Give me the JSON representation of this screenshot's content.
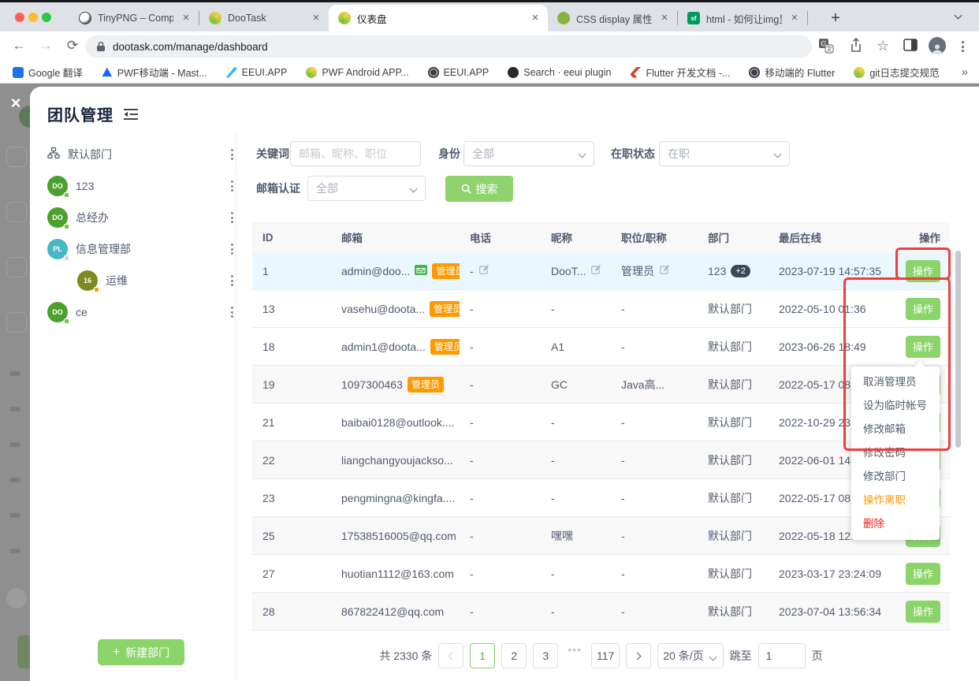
{
  "browser": {
    "tabs": [
      {
        "title": "TinyPNG – Compress We",
        "icon": "panda",
        "active": false
      },
      {
        "title": "DooTask",
        "icon": "dootask",
        "active": false
      },
      {
        "title": "仪表盘",
        "icon": "dootask",
        "active": true
      },
      {
        "title": "CSS display 属性 | 菜鸟教",
        "icon": "runoob",
        "active": false
      },
      {
        "title": "html - 如何让img里的图片",
        "icon": "segmentfault",
        "active": false
      }
    ],
    "new_tab_label": "+",
    "url": "dootask.com/manage/dashboard",
    "bookmarks": [
      {
        "label": "Google 翻译",
        "icon": "google-translate"
      },
      {
        "label": "PWF移动端 - Mast...",
        "icon": "triangle-blue"
      },
      {
        "label": "EEUI.APP",
        "icon": "feather-blue"
      },
      {
        "label": "PWF Android APP...",
        "icon": "dootask"
      },
      {
        "label": "EEUI.APP",
        "icon": "globe-dark"
      },
      {
        "label": "Search · eeui plugin",
        "icon": "github"
      },
      {
        "label": "Flutter 开发文档 -...",
        "icon": "flutter"
      },
      {
        "label": "移动端的 Flutter",
        "icon": "globe-dark"
      },
      {
        "label": "git日志提交规范",
        "icon": "dootask"
      }
    ],
    "bookmarks_overflow": "»"
  },
  "modal": {
    "title": "团队管理",
    "sidebar": {
      "items": [
        {
          "label": "默认部门",
          "type": "root"
        },
        {
          "label": "123",
          "avatar": "DO",
          "avatar_color": "#4ca12e",
          "badge_color": "#7ebc4f",
          "indent": 0
        },
        {
          "label": "总经办",
          "avatar": "DO",
          "avatar_color": "#4ca12e",
          "badge_color": "#7ebc4f",
          "indent": 0
        },
        {
          "label": "信息管理部",
          "avatar": "PL",
          "avatar_color": "#45b8c2",
          "badge_color": "#d8d8d8",
          "indent": 0
        },
        {
          "label": "运维",
          "avatar": "16",
          "avatar_color": "#7c8a1f",
          "badge_color": "#f0a020",
          "indent": 1
        },
        {
          "label": "ce",
          "avatar": "DO",
          "avatar_color": "#4ca12e",
          "badge_color": "#7ebc4f",
          "indent": 0
        }
      ],
      "new_department_label": "新建部门"
    },
    "filters": {
      "keyword_label": "关键词",
      "keyword_placeholder": "邮箱、昵称、职位",
      "identity_label": "身份",
      "identity_value": "全部",
      "status_label": "在职状态",
      "status_value": "在职",
      "email_verify_label": "邮箱认证",
      "email_verify_value": "全部",
      "search_label": "搜索"
    },
    "table": {
      "columns": [
        "ID",
        "邮箱",
        "电话",
        "昵称",
        "职位/职称",
        "部门",
        "最后在线",
        "操作"
      ],
      "admin_badge_label": "管理员",
      "action_label": "操作",
      "rows": [
        {
          "id": "1",
          "email": "admin@doo...",
          "verified": true,
          "admin": true,
          "phone": "-",
          "nickname": "DooT...",
          "job": "管理员",
          "dept": "123",
          "dept_badge": "+2",
          "last_online": "2023-07-19 14:57:35",
          "selected": true,
          "striped": false,
          "editable": true
        },
        {
          "id": "13",
          "email": "vasehu@doota...",
          "verified": false,
          "admin": true,
          "phone": "-",
          "nickname": "-",
          "job": "-",
          "dept": "默认部门",
          "dept_badge": "",
          "last_online": "2022-05-10 01:36",
          "selected": false,
          "striped": false,
          "editable": false
        },
        {
          "id": "18",
          "email": "admin1@doota...",
          "verified": false,
          "admin": true,
          "phone": "-",
          "nickname": "A1",
          "job": "-",
          "dept": "默认部门",
          "dept_badge": "",
          "last_online": "2023-06-26 18:49",
          "selected": false,
          "striped": false,
          "editable": false
        },
        {
          "id": "19",
          "email": "1097300463",
          "verified": false,
          "admin": true,
          "phone": "-",
          "nickname": "GC",
          "job": "Java高...",
          "dept": "默认部门",
          "dept_badge": "",
          "last_online": "2022-05-17 08:34",
          "selected": false,
          "striped": true,
          "editable": false
        },
        {
          "id": "21",
          "email": "baibai0128@outlook....",
          "verified": false,
          "admin": false,
          "phone": "-",
          "nickname": "-",
          "job": "-",
          "dept": "默认部门",
          "dept_badge": "",
          "last_online": "2022-10-29 23:45",
          "selected": false,
          "striped": false,
          "editable": false
        },
        {
          "id": "22",
          "email": "liangchangyoujackso...",
          "verified": false,
          "admin": false,
          "phone": "-",
          "nickname": "-",
          "job": "-",
          "dept": "默认部门",
          "dept_badge": "",
          "last_online": "2022-06-01 14:54:59",
          "selected": false,
          "striped": true,
          "editable": false
        },
        {
          "id": "23",
          "email": "pengmingna@kingfa....",
          "verified": false,
          "admin": false,
          "phone": "-",
          "nickname": "-",
          "job": "-",
          "dept": "默认部门",
          "dept_badge": "",
          "last_online": "2022-05-17 08:46:52",
          "selected": false,
          "striped": false,
          "editable": false
        },
        {
          "id": "25",
          "email": "17538516005@qq.com",
          "verified": false,
          "admin": false,
          "phone": "-",
          "nickname": "嘿嘿",
          "job": "-",
          "dept": "默认部门",
          "dept_badge": "",
          "last_online": "2022-05-18 12:40:52",
          "selected": false,
          "striped": true,
          "editable": false
        },
        {
          "id": "27",
          "email": "huotian1112@163.com",
          "verified": false,
          "admin": false,
          "phone": "-",
          "nickname": "-",
          "job": "-",
          "dept": "默认部门",
          "dept_badge": "",
          "last_online": "2023-03-17 23:24:09",
          "selected": false,
          "striped": false,
          "editable": false
        },
        {
          "id": "28",
          "email": "867822412@qq.com",
          "verified": false,
          "admin": false,
          "phone": "-",
          "nickname": "-",
          "job": "-",
          "dept": "默认部门",
          "dept_badge": "",
          "last_online": "2023-07-04 13:56:34",
          "selected": false,
          "striped": true,
          "editable": false
        }
      ]
    },
    "context_menu": {
      "items": [
        {
          "label": "取消管理员",
          "tone": "default"
        },
        {
          "label": "设为临时帐号",
          "tone": "default"
        },
        {
          "label": "修改邮箱",
          "tone": "default"
        },
        {
          "label": "修改密码",
          "tone": "default"
        },
        {
          "label": "修改部门",
          "tone": "default"
        },
        {
          "label": "操作离职",
          "tone": "warning"
        },
        {
          "label": "删除",
          "tone": "danger"
        }
      ]
    },
    "pagination": {
      "total": "共 2330 条",
      "pages": [
        "1",
        "2",
        "3",
        "...",
        "117"
      ],
      "active_page": "1",
      "per_page": "20 条/页",
      "jump_label": "跳至",
      "jump_value": "1",
      "page_unit": "页"
    }
  },
  "colors": {
    "accent_green": "#8bd46a",
    "search_green": "#8fd36c",
    "admin_badge_orange": "#ff9900",
    "warning_orange": "#ff9900",
    "danger_red": "#ed1c1c",
    "annotation_red": "#f03e3e",
    "row_highlight_blue": "#ebf7ff",
    "table_header_bg": "#f8f8f9",
    "dept_pill_dark": "#3d4757"
  }
}
